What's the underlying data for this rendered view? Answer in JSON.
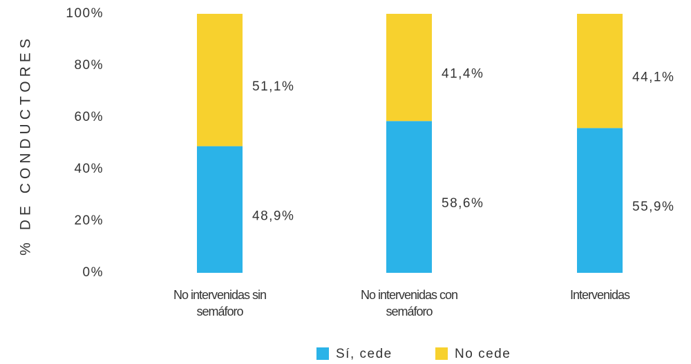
{
  "chart_data": {
    "type": "stacked_bar",
    "ylabel": "% DE CONDUCTORES",
    "categories": [
      "No intervenidas sin semáforo",
      "No intervenidas con semáforo",
      "Intervenidas"
    ],
    "series": [
      {
        "name": "Sí, cede",
        "color": "#2bb3e8",
        "values": [
          48.9,
          58.6,
          55.9
        ],
        "value_labels": [
          "48,9%",
          "58,6%",
          "55,9%"
        ]
      },
      {
        "name": "No cede",
        "color": "#f7d12e",
        "values": [
          51.1,
          41.4,
          44.1
        ],
        "value_labels": [
          "51,1%",
          "41,4%",
          "44,1%"
        ]
      }
    ],
    "ylim": [
      0,
      100
    ],
    "yticks": [
      {
        "value": 0,
        "label": "0%"
      },
      {
        "value": 20,
        "label": "20%"
      },
      {
        "value": 40,
        "label": "40%"
      },
      {
        "value": 60,
        "label": "60%"
      },
      {
        "value": 80,
        "label": "80%"
      },
      {
        "value": 100,
        "label": "100%"
      }
    ],
    "legend": "bottom"
  }
}
